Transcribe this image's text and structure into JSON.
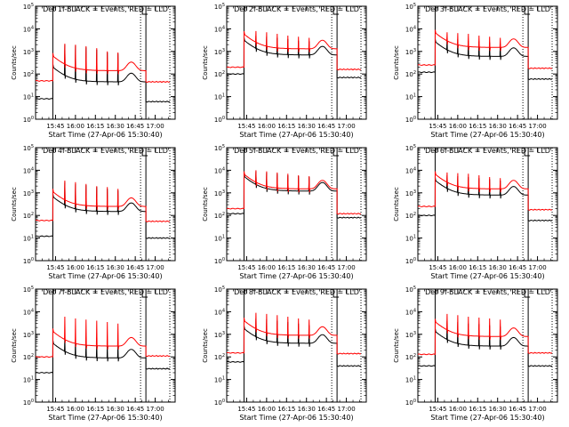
{
  "figure": {
    "label": "RHESSI detector lightcurves (9 panels)"
  },
  "chart_data": [
    {
      "type": "line",
      "title": "Det 1f-BLACK = Events, RED = LLD",
      "xlabel": "Start Time (27-Apr-06 15:30:40)",
      "ylabel": "Counts/sec",
      "x_tick_labels": [
        "15:45",
        "16:00",
        "16:15",
        "16:30",
        "16:45",
        "17:00"
      ],
      "x_tick_values_min": [
        15,
        30,
        45,
        60,
        75,
        90
      ],
      "xlim_min": [
        0,
        105
      ],
      "y_scale": "log",
      "ylim": [
        1,
        100000
      ],
      "y_tick_labels": [
        "10^0",
        "10^1",
        "10^2",
        "10^3",
        "10^4",
        "10^5"
      ],
      "vlines_solid_min": [
        13,
        83
      ],
      "vlines_dotted_min": [
        79,
        101
      ],
      "series": [
        {
          "name": "Events",
          "color": "#000000",
          "pre": 8,
          "base": 45,
          "post": 6,
          "spikes": [
            2000,
            1800,
            1500,
            1200,
            900,
            800
          ]
        },
        {
          "name": "LLD",
          "color": "#ff0000",
          "pre": 50,
          "base": 140,
          "post": 45,
          "spikes": [
            2200,
            2000,
            1700,
            1400,
            1000,
            900
          ]
        }
      ]
    },
    {
      "type": "line",
      "title": "Det 2f-BLACK = Events, RED = LLD",
      "xlabel": "Start Time (27-Apr-06 15:30:40)",
      "ylabel": "Counts/sec",
      "x_tick_labels": [
        "15:45",
        "16:00",
        "16:15",
        "16:30",
        "16:45",
        "17:00"
      ],
      "x_tick_values_min": [
        15,
        30,
        45,
        60,
        75,
        90
      ],
      "xlim_min": [
        0,
        105
      ],
      "y_scale": "log",
      "ylim": [
        1,
        100000
      ],
      "y_tick_labels": [
        "10^0",
        "10^1",
        "10^2",
        "10^3",
        "10^4",
        "10^5"
      ],
      "vlines_solid_min": [
        13,
        83
      ],
      "vlines_dotted_min": [
        79,
        101
      ],
      "series": [
        {
          "name": "Events",
          "color": "#000000",
          "pre": 100,
          "base": 700,
          "post": 70,
          "spikes": [
            5000,
            4500,
            4000,
            3500,
            3000,
            2800
          ]
        },
        {
          "name": "LLD",
          "color": "#ff0000",
          "pre": 200,
          "base": 1300,
          "post": 160,
          "spikes": [
            8000,
            7000,
            6000,
            5000,
            4500,
            4000
          ]
        }
      ]
    },
    {
      "type": "line",
      "title": "Det 3f-BLACK = Events, RED = LLD",
      "xlabel": "Start Time (27-Apr-06 15:30:40)",
      "ylabel": "Counts/sec",
      "x_tick_labels": [
        "15:45",
        "16:00",
        "16:15",
        "16:30",
        "16:45",
        "17:00"
      ],
      "x_tick_values_min": [
        15,
        30,
        45,
        60,
        75,
        90
      ],
      "xlim_min": [
        0,
        105
      ],
      "y_scale": "log",
      "ylim": [
        1,
        100000
      ],
      "y_tick_labels": [
        "10^0",
        "10^1",
        "10^2",
        "10^3",
        "10^4",
        "10^5"
      ],
      "vlines_solid_min": [
        13,
        83
      ],
      "vlines_dotted_min": [
        79,
        101
      ],
      "series": [
        {
          "name": "Events",
          "color": "#000000",
          "pre": 120,
          "base": 600,
          "post": 60,
          "spikes": [
            4000,
            3500,
            3000,
            2800,
            2500,
            2200
          ]
        },
        {
          "name": "LLD",
          "color": "#ff0000",
          "pre": 250,
          "base": 1500,
          "post": 180,
          "spikes": [
            7000,
            6500,
            6000,
            5000,
            4500,
            4000
          ]
        }
      ]
    },
    {
      "type": "line",
      "title": "Det 4f-BLACK = Events, RED = LLD",
      "xlabel": "Start Time (27-Apr-06 15:30:40)",
      "ylabel": "Counts/sec",
      "x_tick_labels": [
        "15:45",
        "16:00",
        "16:15",
        "16:30",
        "16:45",
        "17:00"
      ],
      "x_tick_values_min": [
        15,
        30,
        45,
        60,
        75,
        90
      ],
      "xlim_min": [
        0,
        105
      ],
      "y_scale": "log",
      "ylim": [
        1,
        100000
      ],
      "y_tick_labels": [
        "10^0",
        "10^1",
        "10^2",
        "10^3",
        "10^4",
        "10^5"
      ],
      "vlines_solid_min": [
        13,
        83
      ],
      "vlines_dotted_min": [
        79,
        101
      ],
      "series": [
        {
          "name": "Events",
          "color": "#000000",
          "pre": 12,
          "base": 150,
          "post": 10,
          "spikes": [
            3000,
            2500,
            2200,
            1800,
            1500,
            1300
          ]
        },
        {
          "name": "LLD",
          "color": "#ff0000",
          "pre": 60,
          "base": 250,
          "post": 55,
          "spikes": [
            3500,
            3000,
            2500,
            2000,
            1800,
            1500
          ]
        }
      ]
    },
    {
      "type": "line",
      "title": "Det 5f-BLACK = Events, RED = LLD",
      "xlabel": "Start Time (27-Apr-06 15:30:40)",
      "ylabel": "Counts/sec",
      "x_tick_labels": [
        "15:45",
        "16:00",
        "16:15",
        "16:30",
        "16:45",
        "17:00"
      ],
      "x_tick_values_min": [
        15,
        30,
        45,
        60,
        75,
        90
      ],
      "xlim_min": [
        0,
        105
      ],
      "y_scale": "log",
      "ylim": [
        1,
        100000
      ],
      "y_tick_labels": [
        "10^0",
        "10^1",
        "10^2",
        "10^3",
        "10^4",
        "10^5"
      ],
      "vlines_solid_min": [
        13,
        83
      ],
      "vlines_dotted_min": [
        79,
        101
      ],
      "series": [
        {
          "name": "Events",
          "color": "#000000",
          "pre": 120,
          "base": 1200,
          "post": 80,
          "spikes": [
            9000,
            8000,
            7000,
            6000,
            5500,
            5000
          ]
        },
        {
          "name": "LLD",
          "color": "#ff0000",
          "pre": 200,
          "base": 1500,
          "post": 120,
          "spikes": [
            10000,
            9000,
            8000,
            7000,
            6000,
            5500
          ]
        }
      ]
    },
    {
      "type": "line",
      "title": "Det 6f-BLACK = Events, RED = LLD",
      "xlabel": "Start Time (27-Apr-06 15:30:40)",
      "ylabel": "Counts/sec",
      "x_tick_labels": [
        "15:45",
        "16:00",
        "16:15",
        "16:30",
        "16:45",
        "17:00"
      ],
      "x_tick_values_min": [
        15,
        30,
        45,
        60,
        75,
        90
      ],
      "xlim_min": [
        0,
        105
      ],
      "y_scale": "log",
      "ylim": [
        1,
        100000
      ],
      "y_tick_labels": [
        "10^0",
        "10^1",
        "10^2",
        "10^3",
        "10^4",
        "10^5"
      ],
      "vlines_solid_min": [
        13,
        83
      ],
      "vlines_dotted_min": [
        79,
        101
      ],
      "series": [
        {
          "name": "Events",
          "color": "#000000",
          "pre": 100,
          "base": 800,
          "post": 60,
          "spikes": [
            6000,
            5500,
            5000,
            4500,
            4000,
            3500
          ]
        },
        {
          "name": "LLD",
          "color": "#ff0000",
          "pre": 250,
          "base": 1500,
          "post": 180,
          "spikes": [
            8000,
            7500,
            7000,
            6000,
            5000,
            4500
          ]
        }
      ]
    },
    {
      "type": "line",
      "title": "Det 7f-BLACK = Events, RED = LLD",
      "xlabel": "Start Time (27-Apr-06 15:30:40)",
      "ylabel": "Counts/sec",
      "x_tick_labels": [
        "15:45",
        "16:00",
        "16:15",
        "16:30",
        "16:45",
        "17:00"
      ],
      "x_tick_values_min": [
        15,
        30,
        45,
        60,
        75,
        90
      ],
      "xlim_min": [
        0,
        105
      ],
      "y_scale": "log",
      "ylim": [
        1,
        100000
      ],
      "y_tick_labels": [
        "10^0",
        "10^1",
        "10^2",
        "10^3",
        "10^4",
        "10^5"
      ],
      "vlines_solid_min": [
        13,
        83
      ],
      "vlines_dotted_min": [
        79,
        101
      ],
      "series": [
        {
          "name": "Events",
          "color": "#000000",
          "pre": 20,
          "base": 90,
          "post": 30,
          "spikes": [
            700,
            600,
            500,
            450,
            400,
            350
          ]
        },
        {
          "name": "LLD",
          "color": "#ff0000",
          "pre": 100,
          "base": 300,
          "post": 110,
          "spikes": [
            6000,
            5000,
            4500,
            4000,
            3500,
            3000
          ]
        }
      ]
    },
    {
      "type": "line",
      "title": "Det 8f-BLACK = Events, RED = LLD",
      "xlabel": "Start Time (27-Apr-06 15:30:40)",
      "ylabel": "Counts/sec",
      "x_tick_labels": [
        "15:45",
        "16:00",
        "16:15",
        "16:30",
        "16:45",
        "17:00"
      ],
      "x_tick_values_min": [
        15,
        30,
        45,
        60,
        75,
        90
      ],
      "xlim_min": [
        0,
        105
      ],
      "y_scale": "log",
      "ylim": [
        1,
        100000
      ],
      "y_tick_labels": [
        "10^0",
        "10^1",
        "10^2",
        "10^3",
        "10^4",
        "10^5"
      ],
      "vlines_solid_min": [
        13,
        83
      ],
      "vlines_dotted_min": [
        79,
        101
      ],
      "series": [
        {
          "name": "Events",
          "color": "#000000",
          "pre": 60,
          "base": 400,
          "post": 40,
          "spikes": [
            5000,
            4500,
            4000,
            3500,
            3000,
            2500
          ]
        },
        {
          "name": "LLD",
          "color": "#ff0000",
          "pre": 150,
          "base": 900,
          "post": 140,
          "spikes": [
            9000,
            8000,
            7000,
            6000,
            5000,
            4500
          ]
        }
      ]
    },
    {
      "type": "line",
      "title": "Det 9f-BLACK = Events, RED = LLD",
      "xlabel": "Start Time (27-Apr-06 15:30:40)",
      "ylabel": "Counts/sec",
      "x_tick_labels": [
        "15:45",
        "16:00",
        "16:15",
        "16:30",
        "16:45",
        "17:00"
      ],
      "x_tick_values_min": [
        15,
        30,
        45,
        60,
        75,
        90
      ],
      "xlim_min": [
        0,
        105
      ],
      "y_scale": "log",
      "ylim": [
        1,
        100000
      ],
      "y_tick_labels": [
        "10^0",
        "10^1",
        "10^2",
        "10^3",
        "10^4",
        "10^5"
      ],
      "vlines_solid_min": [
        13,
        83
      ],
      "vlines_dotted_min": [
        79,
        101
      ],
      "series": [
        {
          "name": "Events",
          "color": "#000000",
          "pre": 40,
          "base": 300,
          "post": 40,
          "spikes": [
            4000,
            3500,
            3000,
            2800,
            2500,
            2200
          ]
        },
        {
          "name": "LLD",
          "color": "#ff0000",
          "pre": 130,
          "base": 800,
          "post": 150,
          "spikes": [
            8000,
            7000,
            6000,
            5500,
            5000,
            4500
          ]
        }
      ]
    }
  ]
}
